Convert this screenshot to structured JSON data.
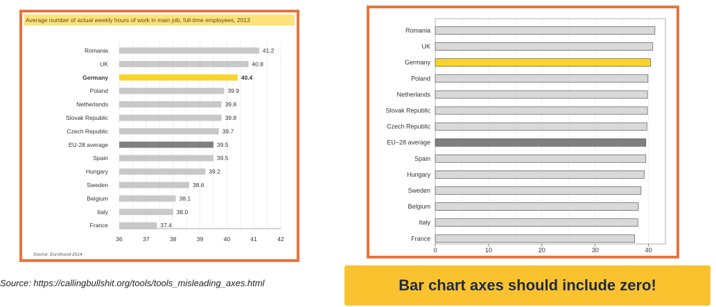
{
  "left_panel": {
    "title": "Average number of actual weekly hours of work in main job, full-time employees, 2013",
    "source": "Source: Eurofound 2014"
  },
  "caption": "Source: https://callingbullshit.org/tools/tools_misleading_axes.html",
  "banner": {
    "text": "Bar chart axes should include zero!"
  },
  "colors": {
    "highlight": "#fad42b",
    "eu": "#808080",
    "default_left": "#c8c8c8",
    "default_right": "#d9d9d9",
    "border": "#e8743b",
    "banner": "#f9c22e"
  },
  "chart_data": [
    {
      "type": "bar",
      "orientation": "horizontal",
      "categories": [
        "Romania",
        "UK",
        "Germany",
        "Poland",
        "Netherlands",
        "Slovak Republic",
        "Czech Republic",
        "EU-28 average",
        "Spain",
        "Hungary",
        "Sweden",
        "Belgium",
        "Italy",
        "France"
      ],
      "values": [
        41.2,
        40.8,
        40.4,
        39.9,
        39.8,
        39.8,
        39.7,
        39.5,
        39.5,
        39.2,
        38.6,
        38.1,
        38.0,
        37.4
      ],
      "value_labels": [
        "41.2",
        "40.8",
        "40.4",
        "39.9",
        "39.8",
        "39.8",
        "39.7",
        "39.5",
        "39.5",
        "39.2",
        "38.6",
        "38.1",
        "38.0",
        "37.4"
      ],
      "highlight": [
        "Germany"
      ],
      "secondary_highlight": [
        "EU-28 average"
      ],
      "xlim": [
        36,
        42
      ],
      "xticks": [
        "36",
        "37",
        "38",
        "39",
        "40",
        "41",
        "42"
      ],
      "grid": "vertical dotted"
    },
    {
      "type": "bar",
      "orientation": "horizontal",
      "categories": [
        "Romania",
        "UK",
        "Germany",
        "Poland",
        "Netherlands",
        "Slovak Republic",
        "Czech Republic",
        "EU−28 average",
        "Spain",
        "Hungary",
        "Sweden",
        "Belgium",
        "Italy",
        "France"
      ],
      "values": [
        41.2,
        40.8,
        40.4,
        39.9,
        39.8,
        39.8,
        39.7,
        39.5,
        39.5,
        39.2,
        38.6,
        38.1,
        38.0,
        37.4
      ],
      "highlight": [
        "Germany"
      ],
      "secondary_highlight": [
        "EU−28 average"
      ],
      "xlim": [
        0,
        42
      ],
      "xticks": [
        "0",
        "10",
        "20",
        "30",
        "40"
      ],
      "grid": "vertical dotted"
    }
  ]
}
